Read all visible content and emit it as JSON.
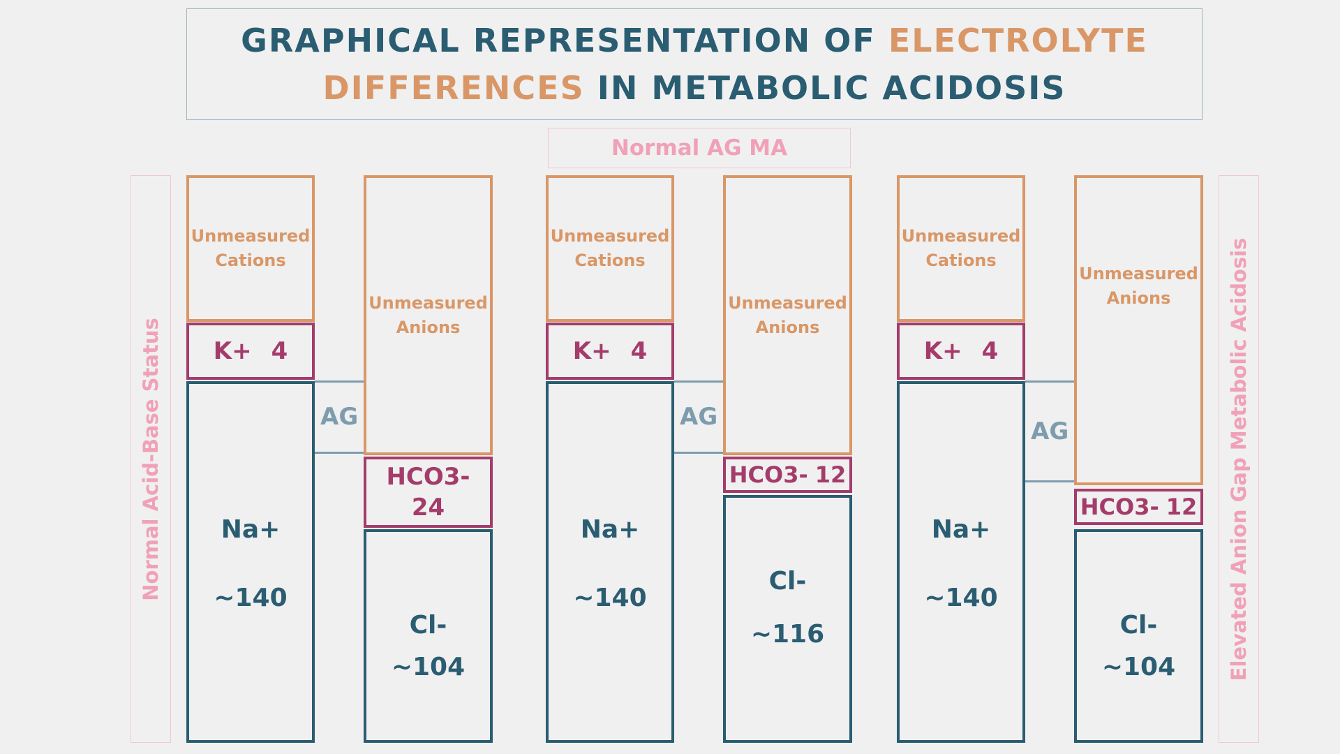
{
  "title": {
    "part1": "GRAPHICAL REPRESENTATION OF",
    "part2": "ELECTROLYTE",
    "part3": "DIFFERENCES",
    "part4": "IN METABOLIC ACIDOSIS"
  },
  "labels": {
    "left": "Normal Acid-Base Status",
    "middle": "Normal AG MA",
    "right": "Elevated Anion Gap Metabolic Acidosis"
  },
  "common": {
    "unmeasured_cations": [
      "Unmeasured",
      "Cations"
    ],
    "unmeasured_anions": [
      "Unmeasured",
      "Anions"
    ],
    "k_label": "K+",
    "k_value": "4",
    "na_label": "Na+",
    "na_value": "~140",
    "cl_label": "Cl-",
    "ag_label": "AG"
  },
  "panels": [
    {
      "hco3_label": "HCO3-",
      "hco3_value": "24",
      "cl_value": "~104"
    },
    {
      "hco3_label": "HCO3-",
      "hco3_value": "12",
      "cl_value": "~116"
    },
    {
      "hco3_label": "HCO3-",
      "hco3_value": "12",
      "cl_value": "~104"
    }
  ],
  "colors": {
    "title": "#2a5d72",
    "title_highlight": "#d99767",
    "unmeasured": "#d99767",
    "potassium_bicarb": "#a43c6b",
    "sodium_chloride": "#2a5d72",
    "anion_gap": "#7d9cae",
    "side_labels": "#f0a1b8"
  }
}
